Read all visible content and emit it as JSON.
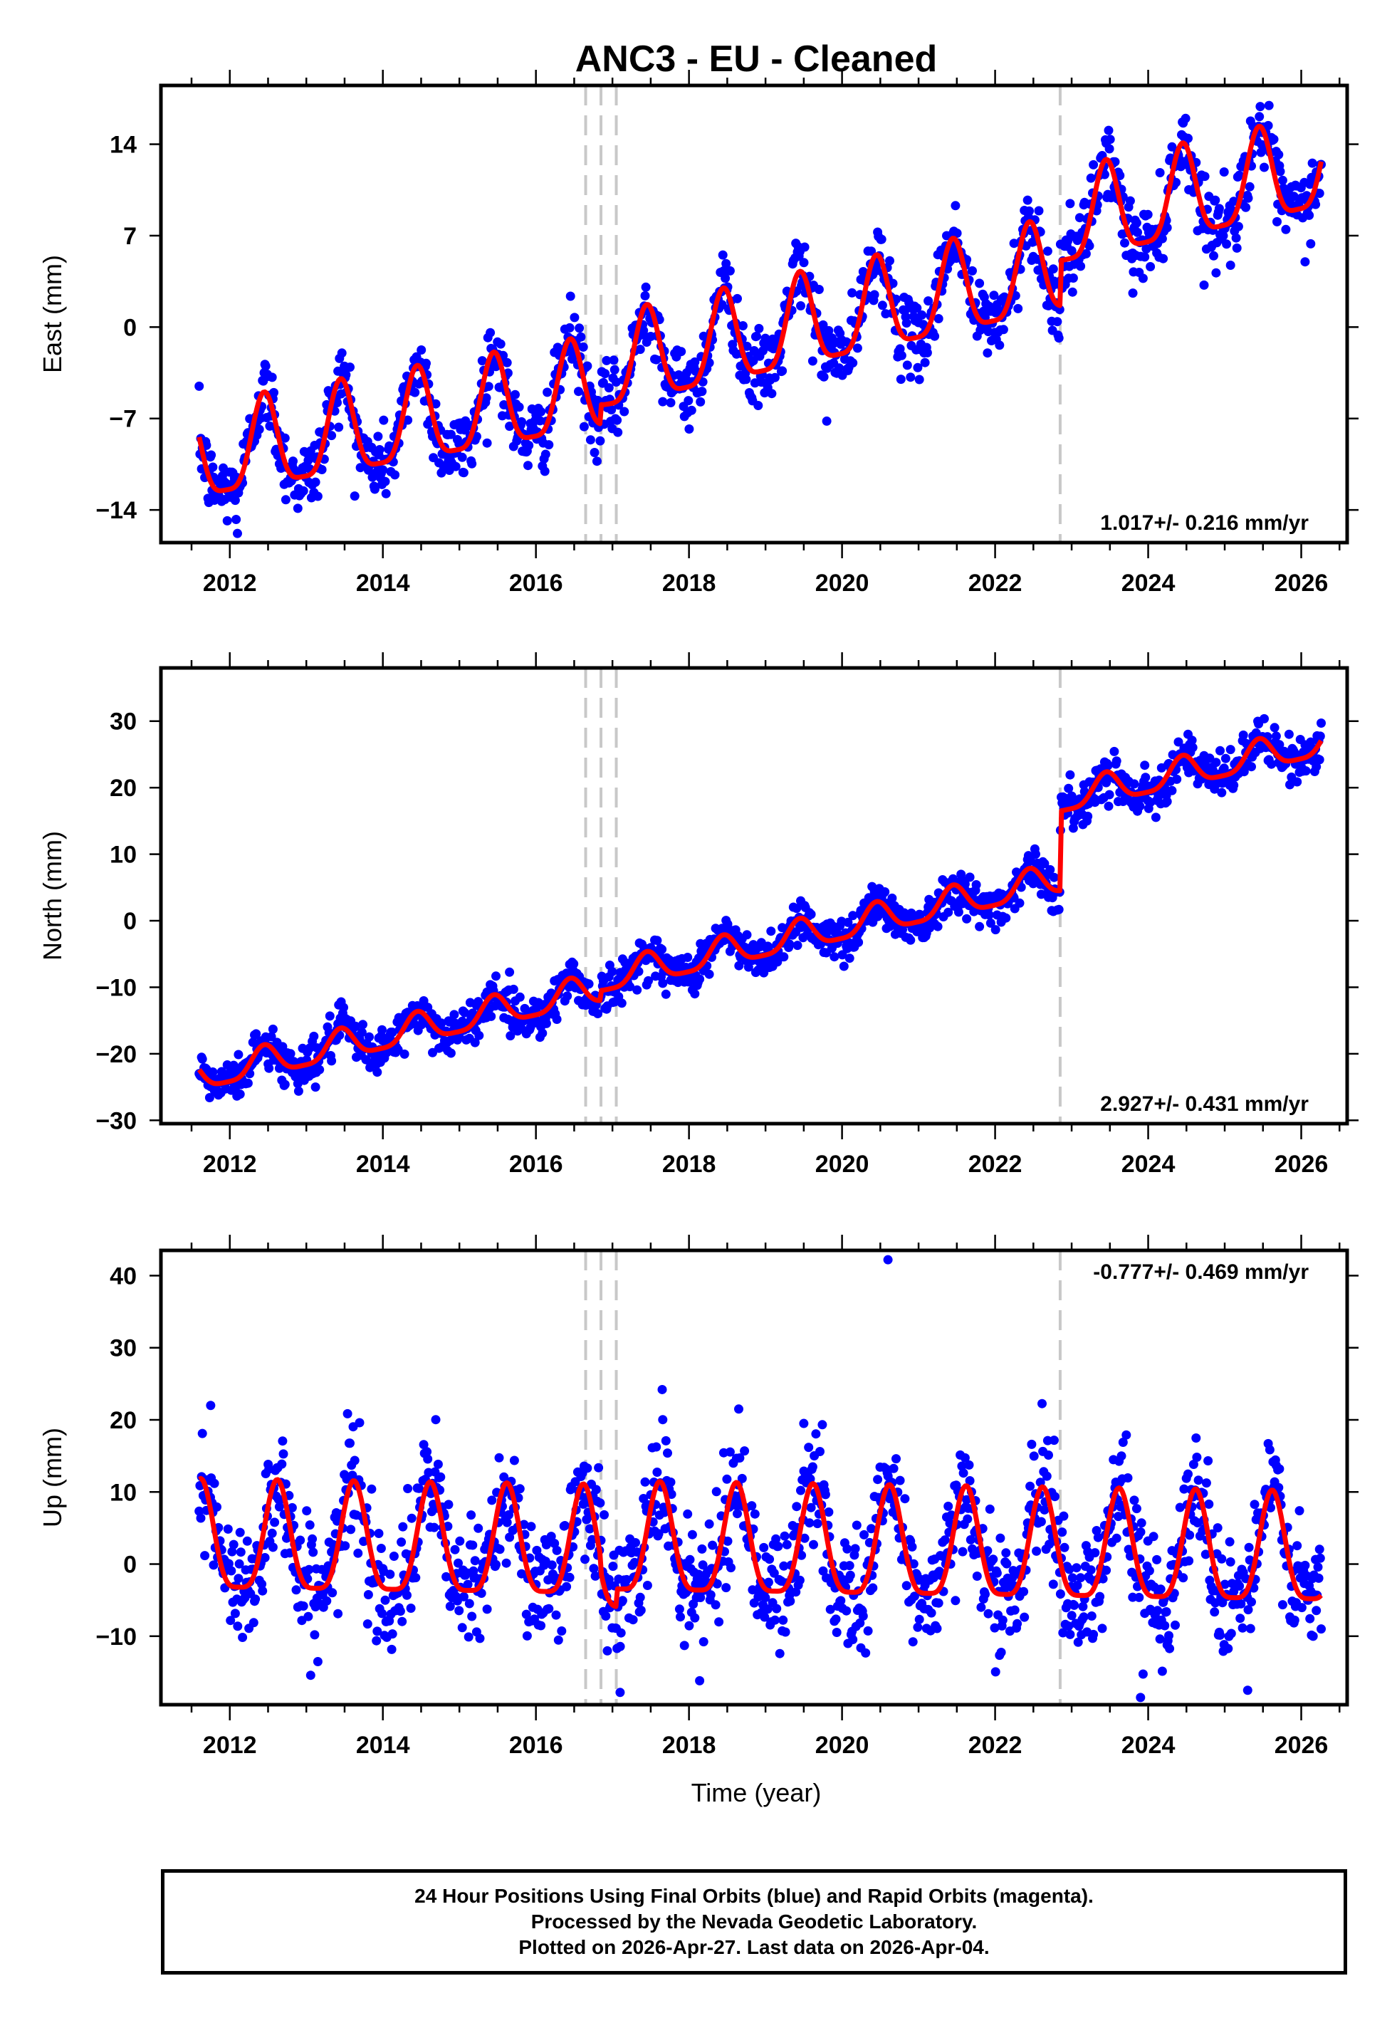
{
  "chart_data": {
    "type": "scatter",
    "title": "ANC3  - EU - Cleaned",
    "xlabel": "Time (year)",
    "xlim": [
      2011.1,
      2026.6
    ],
    "x_ticks": [
      2012,
      2014,
      2016,
      2018,
      2020,
      2022,
      2024,
      2026
    ],
    "x_tick_labels": [
      "2012",
      "2014",
      "2016",
      "2018",
      "2020",
      "2022",
      "2024",
      "2026"
    ],
    "data_start": 2011.6,
    "data_end": 2026.26,
    "event_lines": [
      2016.65,
      2016.85,
      2017.05,
      2022.85
    ],
    "colors": {
      "final_orbits": "#0000ff",
      "rapid_orbits": "#ff00ff",
      "model_fit": "#ff0000",
      "event_line": "#c8c8c8",
      "axis": "#000000"
    },
    "panels": [
      {
        "id": "east",
        "ylabel": "East (mm)",
        "ylim": [
          -16.5,
          18.5
        ],
        "y_ticks": [
          -14,
          -7,
          0,
          7,
          14
        ],
        "y_tick_labels": [
          "−14",
          "−7",
          "0",
          "7",
          "14"
        ],
        "rate_text": "1.017+/- 0.216 mm/yr",
        "rate_position": "bottom-right",
        "rate_mm_per_yr": 1.017,
        "rate_sigma": 0.216,
        "fit": {
          "offset_at_2011_6": -10.2,
          "trend_mm_per_yr": 1.017,
          "annual_amplitude": 3.5,
          "annual_peak_fraction": 0.45,
          "steps": [
            {
              "t": 2016.85,
              "dy": 1.5
            },
            {
              "t": 2022.85,
              "dy": 3.5
            }
          ],
          "extra_trend_after": [
            {
              "t": 2017.0,
              "slope": 0.25
            }
          ]
        },
        "scatter_sigma": 1.4,
        "outliers": [
          [
            2012.1,
            -15.8
          ],
          [
            2019.8,
            -7.2
          ],
          [
            2023.8,
            2.6
          ]
        ],
        "series": [
          {
            "name": "Final Orbits (blue)",
            "color": "#0000ff"
          },
          {
            "name": "Model fit",
            "color": "#ff0000"
          }
        ]
      },
      {
        "id": "north",
        "ylabel": "North (mm)",
        "ylim": [
          -30.5,
          38
        ],
        "y_ticks": [
          -30,
          -20,
          -10,
          0,
          10,
          20,
          30
        ],
        "y_tick_labels": [
          "−30",
          "−20",
          "−10",
          "0",
          "10",
          "20",
          "30"
        ],
        "rate_text": "2.927+/- 0.431 mm/yr",
        "rate_position": "bottom-right",
        "rate_mm_per_yr": 2.927,
        "rate_sigma": 0.431,
        "fit": {
          "offset_at_2011_6": -23.5,
          "trend_mm_per_yr": 2.5,
          "annual_amplitude": 2.2,
          "annual_peak_fraction": 0.45,
          "steps": [
            {
              "t": 2016.85,
              "dy": 1.5
            },
            {
              "t": 2022.85,
              "dy": 12.0
            }
          ],
          "extra_trend_after": []
        },
        "scatter_sigma": 1.6,
        "outliers": [
          [
            2017.0,
            -10.5
          ],
          [
            2023.2,
            15.0
          ]
        ],
        "series": [
          {
            "name": "Final Orbits (blue)",
            "color": "#0000ff"
          },
          {
            "name": "Model fit",
            "color": "#ff0000"
          }
        ]
      },
      {
        "id": "up",
        "ylabel": "Up (mm)",
        "ylim": [
          -19.5,
          43.5
        ],
        "y_ticks": [
          -10,
          0,
          10,
          20,
          30,
          40
        ],
        "y_tick_labels": [
          "−10",
          "0",
          "10",
          "20",
          "30",
          "40"
        ],
        "rate_text": "-0.777+/- 0.469 mm/yr",
        "rate_position": "top-right",
        "rate_mm_per_yr": -0.777,
        "rate_sigma": 0.469,
        "fit": {
          "offset_at_2011_6": 2.5,
          "trend_mm_per_yr": -0.15,
          "annual_amplitude": 7.5,
          "annual_peak_fraction": 0.62,
          "steps": [
            {
              "t": 2016.85,
              "dy": -2.0
            },
            {
              "t": 2017.05,
              "dy": 2.5
            }
          ],
          "extra_trend_after": []
        },
        "scatter_sigma": 4.2,
        "outliers": [
          [
            2011.75,
            22.0
          ],
          [
            2017.65,
            24.2
          ],
          [
            2020.6,
            42.2
          ],
          [
            2018.65,
            21.5
          ],
          [
            2019.5,
            19.5
          ],
          [
            2023.9,
            -18.5
          ],
          [
            2025.3,
            -17.5
          ],
          [
            2017.1,
            -17.8
          ]
        ],
        "series": [
          {
            "name": "Final Orbits (blue)",
            "color": "#0000ff"
          },
          {
            "name": "Model fit",
            "color": "#ff0000"
          }
        ]
      }
    ]
  },
  "footer": {
    "line1": "24 Hour Positions Using Final Orbits (blue) and Rapid Orbits (magenta).",
    "line2": "Processed by the Nevada Geodetic Laboratory.",
    "line3": "Plotted on 2026-Apr-27. Last data on 2026-Apr-04."
  }
}
